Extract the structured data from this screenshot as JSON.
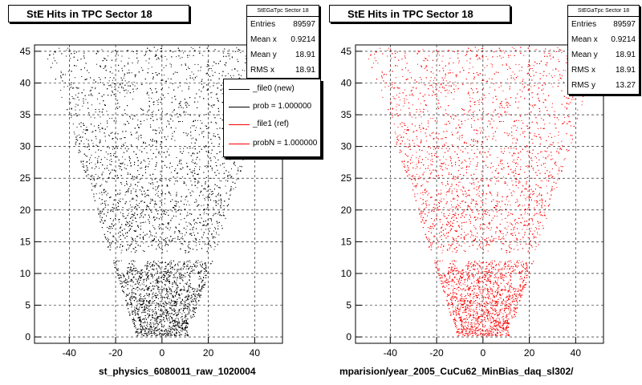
{
  "chart_data": [
    {
      "type": "scatter",
      "title": "StE Hits in TPC Sector 18",
      "xlabel": "st_physics_6080011_raw_1020004",
      "ylabel": "",
      "xlim": [
        -55,
        52
      ],
      "ylim": [
        -1,
        46
      ],
      "xticks": [
        "-40",
        "-20",
        "0",
        "20",
        "40"
      ],
      "yticks": [
        "0",
        "5",
        "10",
        "15",
        "20",
        "25",
        "30",
        "35",
        "40",
        "45"
      ],
      "grid": true,
      "marker_color": "#000000",
      "stats": {
        "name": "StEGaTpc Sector 18",
        "rows": [
          {
            "label": "Entries",
            "value": "89597"
          },
          {
            "label": "Mean x",
            "value": "0.9214"
          },
          {
            "label": "Mean y",
            "value": "18.91"
          },
          {
            "label": "RMS x",
            "value": "18.91"
          }
        ]
      },
      "legend": {
        "placement": "top-right",
        "entries": [
          {
            "label": "_file0 (new)",
            "color": "#000000"
          },
          {
            "label": "prob = 1.000000",
            "color": "#000000"
          },
          {
            "label": "_file1 (ref)",
            "color": "#ff0000"
          },
          {
            "label": "probN = 1.000000",
            "color": "#ff0000"
          }
        ]
      }
    },
    {
      "type": "scatter",
      "title": "StE Hits in TPC Sector 18",
      "xlabel": "mparision/year_2005_CuCu62_MinBias_daq_sl302/",
      "ylabel": "",
      "xlim": [
        -55,
        52
      ],
      "ylim": [
        -1,
        46
      ],
      "xticks": [
        "-40",
        "-20",
        "0",
        "20",
        "40"
      ],
      "yticks": [
        "0",
        "5",
        "10",
        "15",
        "20",
        "25",
        "30",
        "35",
        "40",
        "45"
      ],
      "grid": true,
      "marker_color": "#ff0000",
      "stats": {
        "name": "StEGaTpc Sector 18",
        "rows": [
          {
            "label": "Entries",
            "value": "89597"
          },
          {
            "label": "Mean x",
            "value": "0.9214"
          },
          {
            "label": "Mean y",
            "value": "18.91"
          },
          {
            "label": "RMS x",
            "value": "18.91"
          },
          {
            "label": "RMS y",
            "value": "13.27"
          }
        ]
      }
    }
  ]
}
